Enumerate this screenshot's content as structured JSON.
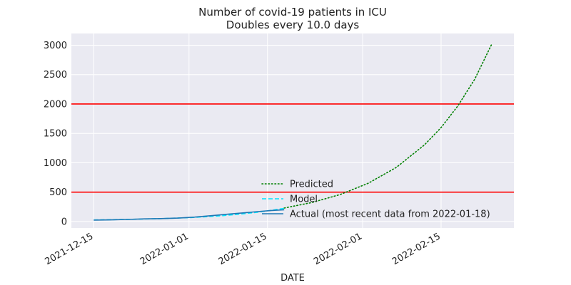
{
  "chart_data": {
    "type": "line",
    "title": "Number of covid-19 patients in ICU",
    "subtitle": "Doubles every 10.0 days",
    "xlabel": "DATE",
    "ylabel": "",
    "xlim": [
      "2021-12-11",
      "2022-02-28"
    ],
    "ylim": [
      -110,
      3200
    ],
    "grid": true,
    "background": "#eaeaf2",
    "legend_position": "lower center",
    "x_ticks": [
      "2021-12-15",
      "2022-01-01",
      "2022-01-15",
      "2022-02-01",
      "2022-02-15"
    ],
    "y_ticks": [
      0,
      500,
      1000,
      1500,
      2000,
      2500,
      3000
    ],
    "hlines": [
      {
        "y": 500,
        "color": "#ff0000"
      },
      {
        "y": 2000,
        "color": "#ff0000"
      }
    ],
    "series": [
      {
        "name": "Predicted",
        "style": "dotted",
        "color": "#008000",
        "x": [
          "2022-01-18",
          "2022-01-23",
          "2022-01-28",
          "2022-02-02",
          "2022-02-07",
          "2022-02-12",
          "2022-02-15",
          "2022-02-18",
          "2022-02-21",
          "2022-02-24"
        ],
        "y": [
          230,
          325,
          460,
          651,
          920,
          1301,
          1600,
          1968,
          2421,
          3010
        ]
      },
      {
        "name": "Model",
        "style": "dashed",
        "color": "#00e5ff",
        "x": [
          "2021-12-15",
          "2021-12-19",
          "2021-12-23",
          "2021-12-27",
          "2022-01-01",
          "2022-01-04",
          "2022-01-07",
          "2022-01-10",
          "2022-01-13",
          "2022-01-16",
          "2022-01-18"
        ],
        "y": [
          27,
          33,
          40,
          50,
          66,
          82,
          100,
          125,
          155,
          195,
          225
        ]
      },
      {
        "name": "Actual (most recent data from 2022-01-18)",
        "style": "solid",
        "color": "#1f77b4",
        "x": [
          "2021-12-15",
          "2021-12-18",
          "2021-12-21",
          "2021-12-24",
          "2021-12-27",
          "2021-12-30",
          "2022-01-02",
          "2022-01-05",
          "2022-01-08",
          "2022-01-11",
          "2022-01-14",
          "2022-01-16",
          "2022-01-18"
        ],
        "y": [
          25,
          28,
          35,
          45,
          50,
          58,
          75,
          100,
          125,
          150,
          175,
          190,
          200
        ]
      }
    ]
  }
}
